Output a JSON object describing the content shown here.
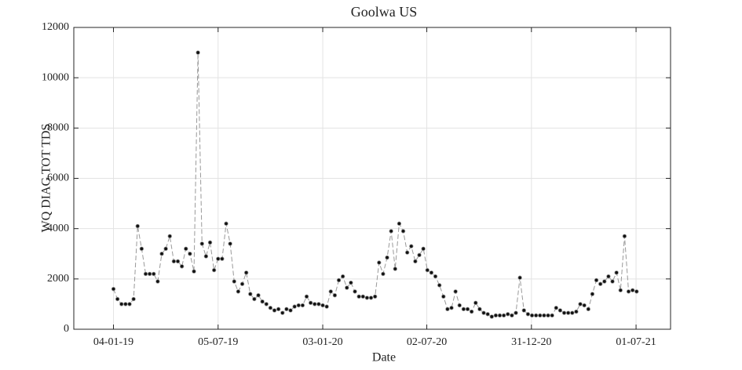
{
  "chart_data": {
    "type": "line",
    "title": "Goolwa US",
    "xlabel": "Date",
    "ylabel": "WQ DIAG TOT TDS",
    "x": [
      "2019-01-04",
      "2019-01-11",
      "2019-01-18",
      "2019-01-25",
      "2019-02-01",
      "2019-02-08",
      "2019-02-15",
      "2019-02-22",
      "2019-03-01",
      "2019-03-08",
      "2019-03-15",
      "2019-03-22",
      "2019-03-29",
      "2019-04-05",
      "2019-04-12",
      "2019-04-19",
      "2019-04-26",
      "2019-05-03",
      "2019-05-10",
      "2019-05-17",
      "2019-05-24",
      "2019-05-31",
      "2019-06-07",
      "2019-06-14",
      "2019-06-21",
      "2019-06-28",
      "2019-07-05",
      "2019-07-12",
      "2019-07-19",
      "2019-07-26",
      "2019-08-02",
      "2019-08-09",
      "2019-08-16",
      "2019-08-23",
      "2019-08-30",
      "2019-09-06",
      "2019-09-13",
      "2019-09-20",
      "2019-09-27",
      "2019-10-04",
      "2019-10-11",
      "2019-10-18",
      "2019-10-25",
      "2019-11-01",
      "2019-11-08",
      "2019-11-15",
      "2019-11-22",
      "2019-11-29",
      "2019-12-06",
      "2019-12-13",
      "2019-12-20",
      "2019-12-27",
      "2020-01-03",
      "2020-01-10",
      "2020-01-17",
      "2020-01-24",
      "2020-01-31",
      "2020-02-07",
      "2020-02-14",
      "2020-02-21",
      "2020-02-28",
      "2020-03-06",
      "2020-03-13",
      "2020-03-20",
      "2020-03-27",
      "2020-04-03",
      "2020-04-10",
      "2020-04-17",
      "2020-04-24",
      "2020-05-01",
      "2020-05-08",
      "2020-05-15",
      "2020-05-22",
      "2020-05-29",
      "2020-06-05",
      "2020-06-12",
      "2020-06-19",
      "2020-06-26",
      "2020-07-03",
      "2020-07-10",
      "2020-07-17",
      "2020-07-24",
      "2020-07-31",
      "2020-08-07",
      "2020-08-14",
      "2020-08-21",
      "2020-08-28",
      "2020-09-04",
      "2020-09-11",
      "2020-09-18",
      "2020-09-25",
      "2020-10-02",
      "2020-10-09",
      "2020-10-16",
      "2020-10-23",
      "2020-10-30",
      "2020-11-06",
      "2020-11-13",
      "2020-11-20",
      "2020-11-27",
      "2020-12-04",
      "2020-12-11",
      "2020-12-18",
      "2020-12-25",
      "2021-01-01",
      "2021-01-08",
      "2021-01-15",
      "2021-01-22",
      "2021-01-29",
      "2021-02-05",
      "2021-02-12",
      "2021-02-19",
      "2021-02-26",
      "2021-03-05",
      "2021-03-12",
      "2021-03-19",
      "2021-03-26",
      "2021-04-02",
      "2021-04-09",
      "2021-04-16",
      "2021-04-23",
      "2021-04-30",
      "2021-05-07",
      "2021-05-14",
      "2021-05-21",
      "2021-05-28",
      "2021-06-04",
      "2021-06-11",
      "2021-06-18",
      "2021-06-25",
      "2021-07-02"
    ],
    "values": [
      1600,
      1200,
      1000,
      1000,
      1000,
      1200,
      4100,
      3200,
      2200,
      2200,
      2200,
      1900,
      3000,
      3200,
      3700,
      2700,
      2700,
      2500,
      3200,
      3000,
      2300,
      11000,
      3400,
      2900,
      3450,
      2350,
      2800,
      2800,
      4200,
      3400,
      1900,
      1500,
      1800,
      2250,
      1400,
      1200,
      1350,
      1100,
      1000,
      850,
      750,
      800,
      650,
      800,
      750,
      900,
      950,
      950,
      1300,
      1050,
      1000,
      1000,
      950,
      900,
      1500,
      1350,
      1950,
      2100,
      1650,
      1850,
      1500,
      1300,
      1300,
      1250,
      1250,
      1300,
      2650,
      2200,
      2850,
      3900,
      2400,
      4200,
      3900,
      3050,
      3300,
      2700,
      2950,
      3200,
      2350,
      2250,
      2100,
      1750,
      1300,
      800,
      850,
      1500,
      950,
      800,
      800,
      700,
      1050,
      800,
      650,
      600,
      500,
      550,
      550,
      550,
      600,
      550,
      650,
      2050,
      750,
      600,
      550,
      550,
      550,
      550,
      550,
      550,
      850,
      750,
      650,
      650,
      650,
      700,
      1000,
      950,
      800,
      1400,
      1950,
      1800,
      1900,
      2100,
      1900,
      2250,
      1550,
      3700,
      1500,
      1550,
      1500
    ],
    "color": "#999999",
    "marker_color": "#111111",
    "xlim": [
      "2018-10-27",
      "2021-08-30"
    ],
    "xticks": [
      {
        "value": "2019-01-04",
        "label": "04-01-19"
      },
      {
        "value": "2019-07-05",
        "label": "05-07-19"
      },
      {
        "value": "2020-01-03",
        "label": "03-01-20"
      },
      {
        "value": "2020-07-02",
        "label": "02-07-20"
      },
      {
        "value": "2020-12-31",
        "label": "31-12-20"
      },
      {
        "value": "2021-07-01",
        "label": "01-07-21"
      }
    ],
    "ylim": [
      0,
      12000
    ],
    "yticks": [
      0,
      2000,
      4000,
      6000,
      8000,
      10000,
      12000
    ],
    "grid": true
  }
}
